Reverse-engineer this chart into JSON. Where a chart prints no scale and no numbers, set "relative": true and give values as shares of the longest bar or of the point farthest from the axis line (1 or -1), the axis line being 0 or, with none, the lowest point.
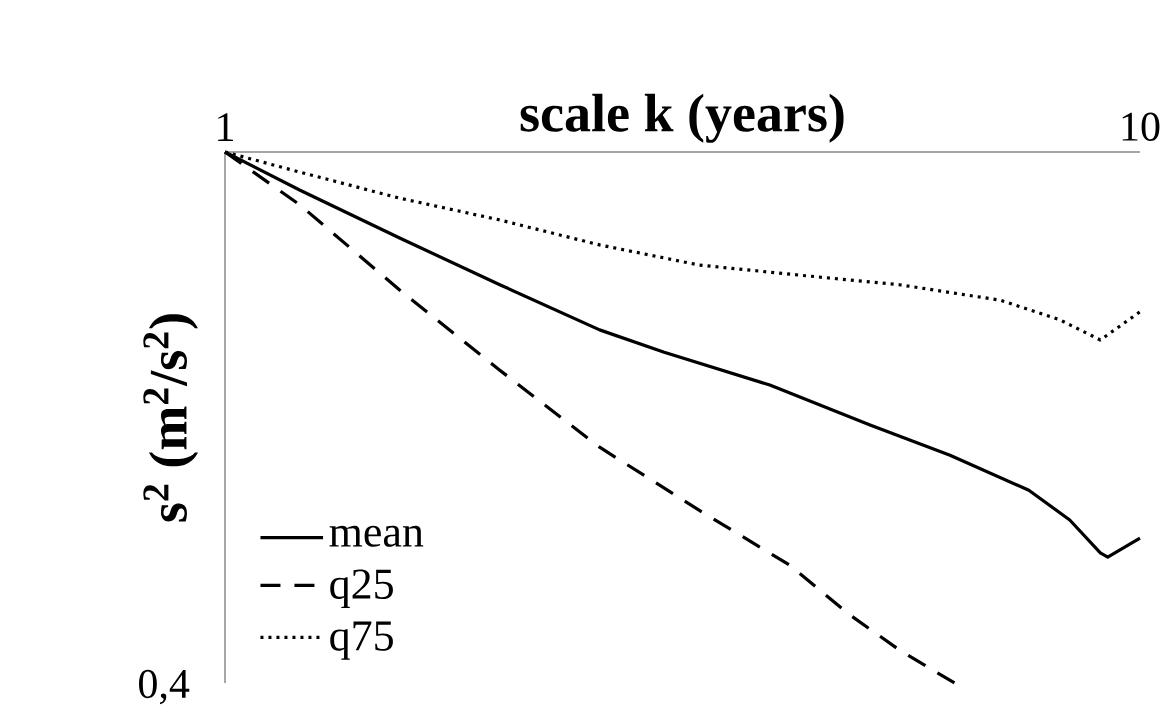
{
  "chart_data": {
    "type": "line",
    "xlabel": "scale k (years)",
    "ylabel": "s$^{2}$ (m$^{2}$/s$^{2}$)",
    "log": "x",
    "xlim": [
      1,
      10
    ],
    "xticks": [
      1,
      10
    ],
    "relative": true,
    "legend": "bottom left",
    "marker": "none",
    "annotations": [
      "0,4"
    ],
    "series": [
      {
        "name": "mean",
        "color": "#000000",
        "line_style": "solid",
        "x": [
          1,
          1.208,
          1.552,
          1.997,
          2.567,
          3.02,
          3.94,
          5.07,
          6.2,
          7.56,
          8.38,
          9.05,
          9.22,
          10
        ],
        "values": [
          0,
          -0.072,
          -0.162,
          -0.25,
          -0.335,
          -0.377,
          -0.439,
          -0.514,
          -0.571,
          -0.637,
          -0.693,
          -0.755,
          -0.763,
          -0.727
        ]
      },
      {
        "name": "q25",
        "color": "#000000",
        "line_style": "dashed",
        "x": [
          1,
          1.208,
          1.552,
          1.997,
          2.567,
          3.3,
          4.14,
          4.82,
          5.46,
          6.27
        ],
        "values": [
          0,
          -0.1,
          -0.26,
          -0.411,
          -0.556,
          -0.675,
          -0.778,
          -0.872,
          -0.938,
          -1
        ]
      },
      {
        "name": "q75",
        "color": "#000000",
        "line_style": "dotted",
        "x": [
          1,
          1.208,
          1.552,
          1.997,
          2.567,
          3.3,
          4.25,
          5.46,
          7.03,
          8.17,
          9.05,
          10
        ],
        "values": [
          0,
          -0.038,
          -0.087,
          -0.128,
          -0.175,
          -0.213,
          -0.232,
          -0.25,
          -0.279,
          -0.316,
          -0.354,
          -0.301
        ]
      }
    ]
  }
}
